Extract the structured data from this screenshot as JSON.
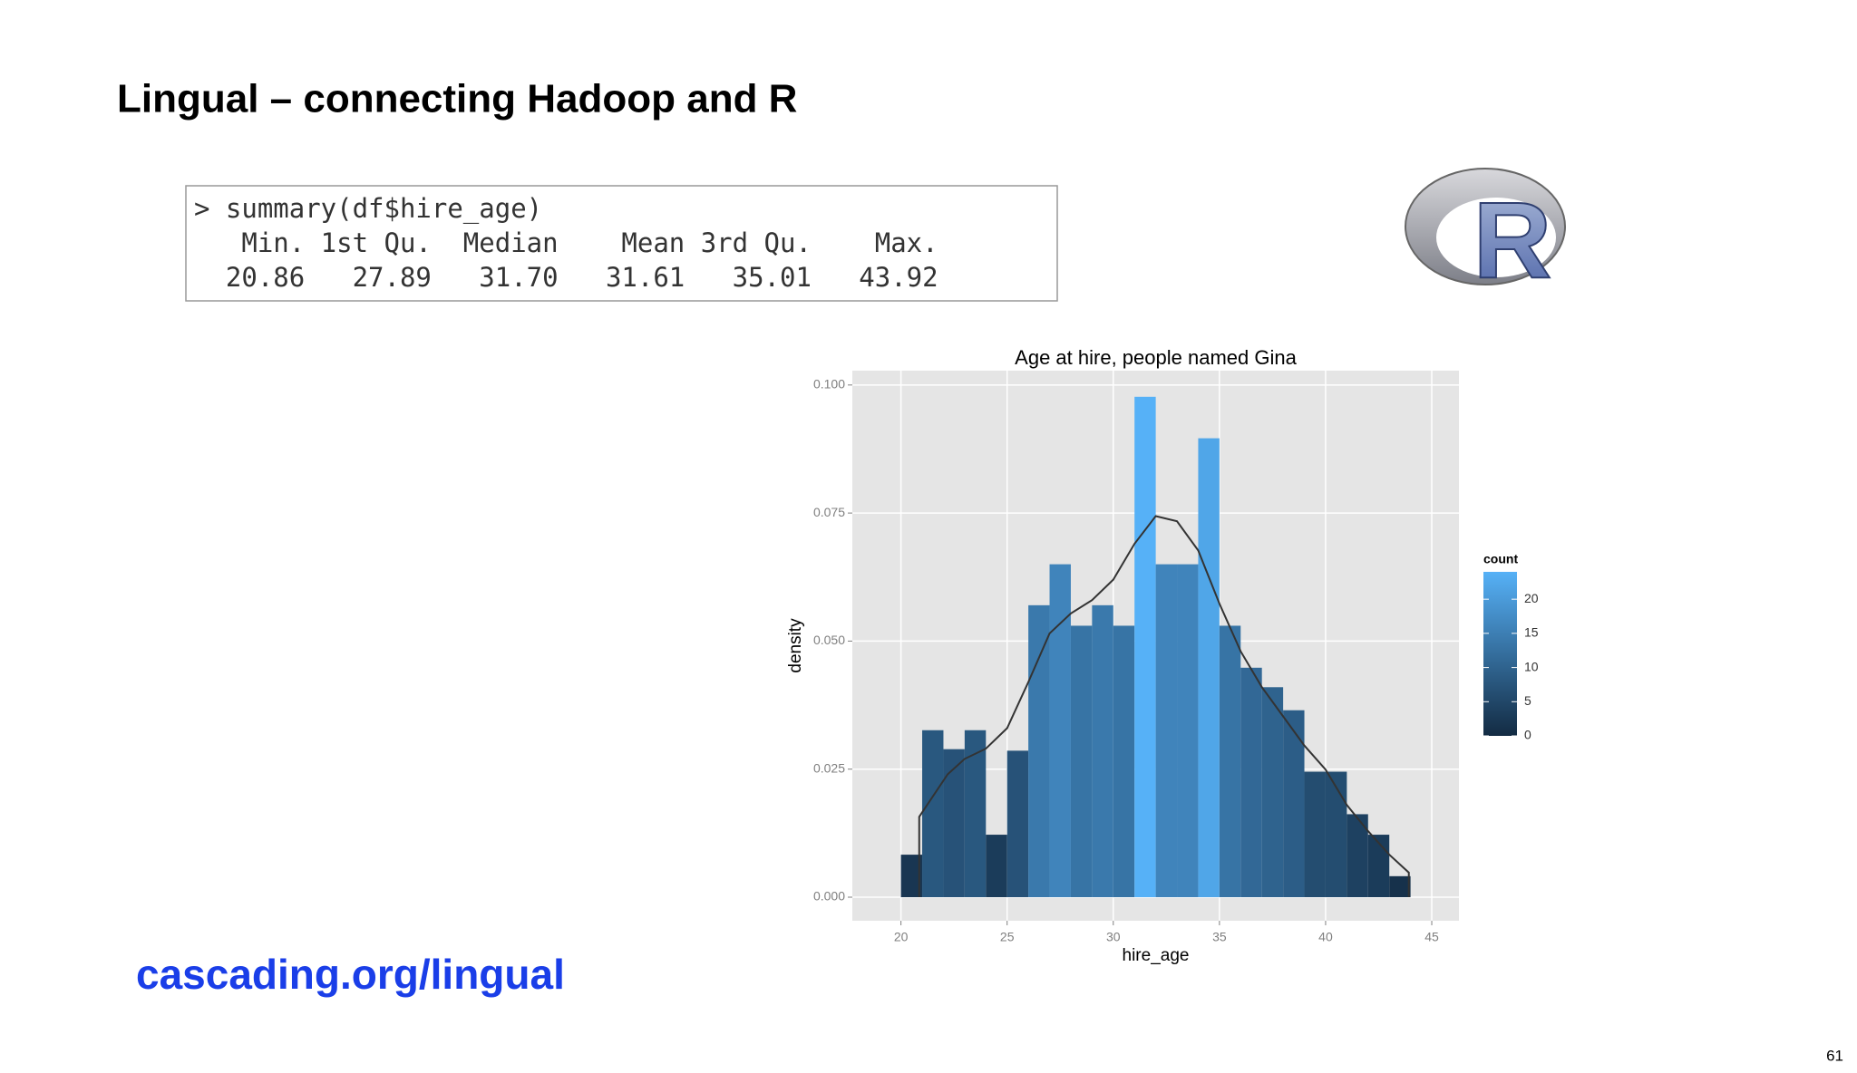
{
  "title": "Lingual – connecting Hadoop and R",
  "code": {
    "command": "> summary(df$hire_age)",
    "header": "   Min. 1st Qu.  Median    Mean 3rd Qu.    Max.",
    "values": "  20.86   27.89   31.70   31.61   35.01   43.92"
  },
  "logo": "R",
  "link": "cascading.org/lingual",
  "page_number": "61",
  "chart_data": {
    "type": "histogram",
    "title": "Age at hire, people named Gina",
    "x_label": "hire_age",
    "y_label": "density",
    "bins": [
      20,
      21,
      22,
      23,
      24,
      25,
      26,
      27,
      28,
      29,
      30,
      31,
      32,
      33,
      34,
      35,
      36,
      37,
      38,
      39,
      40,
      41,
      42,
      43,
      44
    ],
    "values": [
      0.0083,
      0.0326,
      0.0289,
      0.0326,
      0.0122,
      0.0286,
      0.057,
      0.065,
      0.053,
      0.057,
      0.053,
      0.0977,
      0.065,
      0.065,
      0.0896,
      0.053,
      0.0448,
      0.041,
      0.0365,
      0.0245,
      0.0245,
      0.0162,
      0.0122,
      0.0041
    ],
    "counts": [
      2,
      8,
      7,
      8,
      3,
      7,
      14,
      16,
      13,
      14,
      13,
      24,
      16,
      16,
      22,
      13,
      11,
      10,
      9,
      6,
      6,
      4,
      3,
      1
    ],
    "curve": {
      "color": "#333333",
      "x": [
        20.86,
        20.86,
        22.2,
        23,
        24,
        25,
        26,
        27,
        28,
        29,
        30,
        31,
        32,
        33,
        34,
        35,
        36,
        37,
        38,
        39,
        40,
        41,
        42,
        43,
        43.92,
        43.92
      ],
      "values": [
        0,
        0.0157,
        0.024,
        0.027,
        0.029,
        0.033,
        0.042,
        0.0515,
        0.0554,
        0.058,
        0.062,
        0.069,
        0.0744,
        0.0734,
        0.0677,
        0.0573,
        0.048,
        0.041,
        0.0353,
        0.0296,
        0.0249,
        0.018,
        0.0129,
        0.0083,
        0.0048,
        0
      ]
    },
    "xlim": [
      17.71,
      46.28
    ],
    "xticks": [
      20,
      25,
      30,
      35,
      40,
      45
    ],
    "ylim": [
      -0.0046,
      0.1028
    ],
    "yticks": [
      {
        "value": 0,
        "label": "0.000"
      },
      {
        "value": 0.025,
        "label": "0.025"
      },
      {
        "value": 0.05,
        "label": "0.050"
      },
      {
        "value": 0.075,
        "label": "0.075"
      },
      {
        "value": 0.1,
        "label": "0.100"
      }
    ],
    "grid": true,
    "color_scale": {
      "title": "count",
      "low": "#132b43",
      "high": "#56b1f7",
      "lim": [
        0,
        24
      ],
      "ticks": [
        0,
        5,
        10,
        15,
        20
      ]
    }
  }
}
